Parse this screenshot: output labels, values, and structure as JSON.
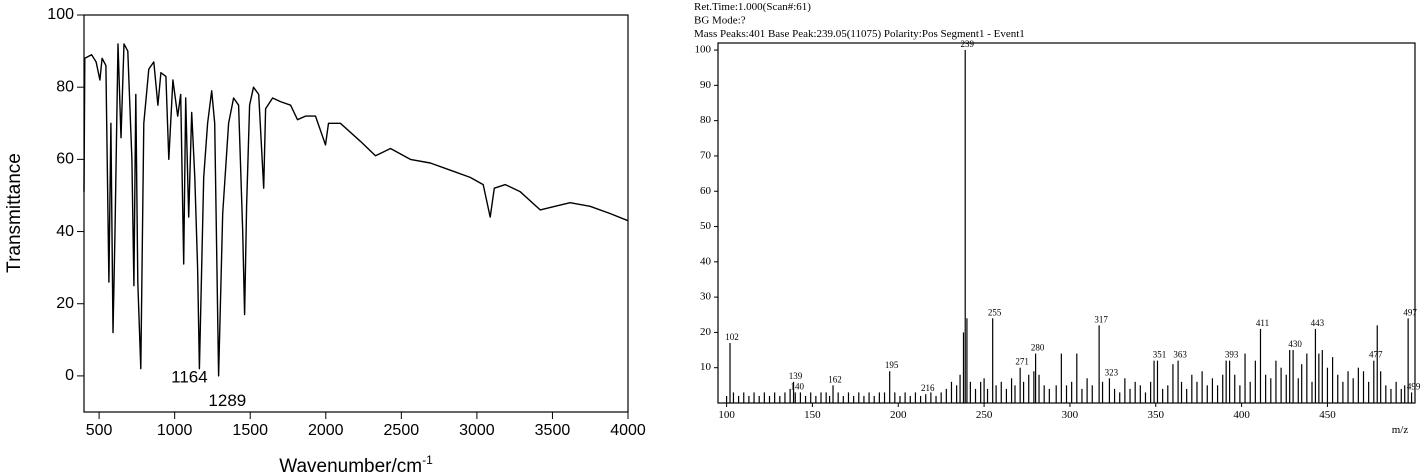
{
  "chart_data": [
    {
      "type": "line",
      "y_label": "Transmittance",
      "x_label": "Wavenumber/cm",
      "x_label_superscript": "-1",
      "xlim": [
        400,
        4000
      ],
      "ylim": [
        -10,
        100
      ],
      "xticks": [
        500,
        1000,
        1500,
        2000,
        2500,
        3000,
        3500,
        4000
      ],
      "yticks": [
        0,
        20,
        40,
        60,
        80,
        100
      ],
      "color": "#000000",
      "x": [
        400,
        405,
        450,
        480,
        505,
        520,
        545,
        565,
        578,
        592,
        605,
        625,
        645,
        665,
        690,
        717,
        730,
        743,
        756,
        776,
        796,
        829,
        862,
        889,
        909,
        942,
        961,
        988,
        1020,
        1040,
        1060,
        1073,
        1093,
        1113,
        1133,
        1152,
        1164,
        1192,
        1218,
        1245,
        1265,
        1291,
        1318,
        1357,
        1390,
        1423,
        1450,
        1463,
        1476,
        1496,
        1522,
        1556,
        1589,
        1602,
        1648,
        1700,
        1767,
        1813,
        1866,
        1932,
        1998,
        2018,
        2097,
        2229,
        2329,
        2428,
        2560,
        2692,
        2824,
        2956,
        3042,
        3088,
        3115,
        3188,
        3287,
        3419,
        3517,
        3617,
        3749,
        3881,
        4000
      ],
      "values": [
        51,
        88,
        89,
        87,
        82,
        88,
        86,
        26,
        70,
        12,
        40,
        92,
        66,
        92,
        90,
        60,
        25,
        78,
        26,
        2,
        70,
        85,
        87,
        75,
        84,
        83,
        60,
        82,
        72,
        78,
        31,
        77,
        44,
        73,
        55,
        30,
        2,
        55,
        70,
        79,
        70,
        0,
        45,
        70,
        77,
        75,
        40,
        17,
        47,
        75,
        80,
        78,
        52,
        74,
        77,
        76,
        75,
        71,
        72,
        72,
        64,
        70,
        70,
        65,
        61,
        63,
        60,
        59,
        57,
        55,
        53,
        44,
        52,
        53,
        51,
        46,
        47,
        48,
        47,
        45,
        43
      ],
      "annotations": [
        {
          "text": "1164",
          "x": 1164
        },
        {
          "text": "1289",
          "x": 1289
        }
      ]
    },
    {
      "type": "stem",
      "header": [
        "Ret.Time:1.000(Scan#:61)",
        "BG Mode:?",
        "Mass Peaks:401   Base Peak:239.05(11075)  Polarity:Pos  Segment1 - Event1"
      ],
      "x_label": "m/z",
      "xlim": [
        95,
        501
      ],
      "ylim": [
        0,
        102
      ],
      "xticks": [
        100,
        150,
        200,
        250,
        300,
        350,
        400,
        450
      ],
      "yticks": [
        10,
        20,
        30,
        40,
        50,
        60,
        70,
        80,
        90,
        100
      ],
      "color": "#000000",
      "x": [
        100,
        102,
        104,
        107,
        110,
        113,
        116,
        119,
        122,
        125,
        128,
        131,
        134,
        137,
        139,
        140,
        143,
        146,
        149,
        152,
        155,
        158,
        160,
        162,
        165,
        168,
        171,
        174,
        177,
        180,
        183,
        186,
        189,
        192,
        195,
        198,
        201,
        204,
        207,
        210,
        213,
        216,
        219,
        222,
        225,
        228,
        231,
        234,
        236,
        238,
        239,
        240,
        242,
        245,
        248,
        250,
        252,
        255,
        257,
        260,
        263,
        266,
        268,
        271,
        273,
        276,
        279,
        280,
        282,
        285,
        288,
        292,
        295,
        298,
        301,
        304,
        307,
        310,
        313,
        317,
        319,
        323,
        326,
        329,
        332,
        335,
        338,
        341,
        344,
        347,
        349,
        351,
        354,
        357,
        360,
        363,
        365,
        368,
        371,
        374,
        377,
        380,
        383,
        386,
        389,
        391,
        393,
        396,
        399,
        402,
        405,
        408,
        411,
        414,
        417,
        420,
        423,
        426,
        428,
        430,
        433,
        435,
        438,
        441,
        443,
        445,
        447,
        450,
        453,
        456,
        459,
        462,
        465,
        468,
        471,
        474,
        477,
        479,
        481,
        484,
        487,
        490,
        493,
        495,
        497,
        499
      ],
      "values": [
        2,
        17,
        3,
        2,
        3,
        2,
        3,
        2,
        3,
        2,
        3,
        2,
        3,
        4,
        6,
        3,
        3,
        2,
        3,
        2,
        3,
        3,
        2,
        5,
        3,
        2,
        3,
        2,
        3,
        2,
        3,
        2,
        3,
        3,
        9,
        3,
        2,
        3,
        2,
        3,
        2,
        2.5,
        3,
        2,
        3,
        4,
        6,
        5,
        8,
        20,
        100,
        24,
        6,
        4,
        6,
        7,
        4,
        24,
        5,
        6,
        4,
        7,
        5,
        10,
        6,
        8,
        9,
        14,
        8,
        5,
        4,
        5,
        14,
        5,
        6,
        14,
        4,
        7,
        5,
        22,
        6,
        7,
        4,
        3,
        7,
        4,
        6,
        5,
        3,
        6,
        12,
        12,
        4,
        5,
        11,
        12,
        6,
        4,
        8,
        6,
        9,
        5,
        7,
        5,
        8,
        12,
        12,
        8,
        5,
        14,
        6,
        12,
        21,
        8,
        7,
        12,
        10,
        8,
        15,
        15,
        7,
        11,
        14,
        6,
        21,
        14,
        15,
        10,
        13,
        8,
        6,
        9,
        7,
        10,
        9,
        6,
        12,
        22,
        9,
        5,
        4,
        6,
        4,
        5,
        24,
        3
      ],
      "peak_labels": [
        null,
        "102",
        null,
        null,
        null,
        null,
        null,
        null,
        null,
        null,
        null,
        null,
        null,
        null,
        "139",
        "140",
        null,
        null,
        null,
        null,
        null,
        null,
        null,
        "162",
        null,
        null,
        null,
        null,
        null,
        null,
        null,
        null,
        null,
        null,
        "195",
        null,
        null,
        null,
        null,
        null,
        null,
        "216",
        null,
        null,
        null,
        null,
        null,
        null,
        null,
        null,
        "239",
        null,
        null,
        null,
        null,
        null,
        null,
        "255",
        null,
        null,
        null,
        null,
        null,
        "271",
        null,
        null,
        null,
        "280",
        null,
        null,
        null,
        null,
        null,
        null,
        null,
        null,
        null,
        null,
        null,
        "317",
        null,
        "323",
        null,
        null,
        null,
        null,
        null,
        null,
        null,
        null,
        null,
        "351",
        null,
        null,
        null,
        "363",
        null,
        null,
        null,
        null,
        null,
        null,
        null,
        null,
        null,
        null,
        "393",
        null,
        null,
        null,
        null,
        null,
        "411",
        null,
        null,
        null,
        null,
        null,
        null,
        "430",
        null,
        null,
        null,
        null,
        "443",
        null,
        null,
        null,
        null,
        null,
        null,
        null,
        null,
        null,
        null,
        null,
        "477",
        null,
        null,
        null,
        null,
        null,
        null,
        null,
        "497",
        "499"
      ]
    }
  ]
}
